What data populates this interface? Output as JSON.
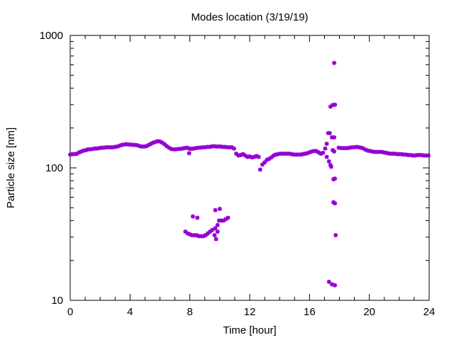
{
  "chart_data": {
    "type": "scatter",
    "title": "Modes location (3/19/19)",
    "xlabel": "Time [hour]",
    "ylabel": "Particle size [nm]",
    "xlim": [
      0,
      24
    ],
    "ylim": [
      10,
      1000
    ],
    "yscale": "log",
    "grid": false,
    "legend": "none",
    "xticks": [
      0,
      4,
      8,
      12,
      16,
      20,
      24
    ],
    "xtick_labels": [
      "0",
      "4",
      "8",
      "12",
      "16",
      "20",
      "24"
    ],
    "yticks": [
      10,
      100,
      1000
    ],
    "ytick_labels": [
      "10",
      "100",
      "1000"
    ],
    "marker_color": "#9400d3",
    "marker": "star",
    "series": [
      {
        "points": [
          [
            0.0,
            126
          ],
          [
            0.15,
            127
          ],
          [
            0.3,
            127
          ],
          [
            0.45,
            128
          ],
          [
            0.6,
            131
          ],
          [
            0.75,
            133
          ],
          [
            0.9,
            135
          ],
          [
            1.05,
            136
          ],
          [
            1.2,
            138
          ],
          [
            1.35,
            138
          ],
          [
            1.5,
            139
          ],
          [
            1.65,
            140
          ],
          [
            1.8,
            140
          ],
          [
            1.95,
            141
          ],
          [
            2.1,
            142
          ],
          [
            2.25,
            142
          ],
          [
            2.4,
            143
          ],
          [
            2.55,
            143
          ],
          [
            2.7,
            143
          ],
          [
            2.85,
            143
          ],
          [
            3.0,
            144
          ],
          [
            3.15,
            145
          ],
          [
            3.3,
            147
          ],
          [
            3.45,
            149
          ],
          [
            3.6,
            150
          ],
          [
            3.75,
            151
          ],
          [
            3.9,
            150
          ],
          [
            4.05,
            150
          ],
          [
            4.2,
            149
          ],
          [
            4.35,
            149
          ],
          [
            4.5,
            148
          ],
          [
            4.65,
            146
          ],
          [
            4.8,
            145
          ],
          [
            4.95,
            145
          ],
          [
            5.1,
            146
          ],
          [
            5.25,
            149
          ],
          [
            5.4,
            152
          ],
          [
            5.55,
            155
          ],
          [
            5.7,
            157
          ],
          [
            5.85,
            159
          ],
          [
            6.0,
            158
          ],
          [
            6.15,
            155
          ],
          [
            6.3,
            151
          ],
          [
            6.45,
            146
          ],
          [
            6.6,
            142
          ],
          [
            6.75,
            139
          ],
          [
            6.9,
            138
          ],
          [
            7.05,
            138
          ],
          [
            7.2,
            139
          ],
          [
            7.35,
            139
          ],
          [
            7.5,
            140
          ],
          [
            7.65,
            141
          ],
          [
            7.8,
            142
          ],
          [
            7.95,
            140
          ],
          [
            8.1,
            139
          ],
          [
            8.25,
            140
          ],
          [
            8.4,
            141
          ],
          [
            8.55,
            142
          ],
          [
            8.7,
            142
          ],
          [
            8.85,
            143
          ],
          [
            9.0,
            143
          ],
          [
            9.15,
            144
          ],
          [
            9.3,
            144
          ],
          [
            9.45,
            145
          ],
          [
            9.6,
            146
          ],
          [
            9.75,
            145
          ],
          [
            9.9,
            145
          ],
          [
            10.05,
            145
          ],
          [
            10.2,
            144
          ],
          [
            10.35,
            144
          ],
          [
            10.5,
            143
          ],
          [
            10.65,
            143
          ],
          [
            10.8,
            143
          ],
          [
            10.95,
            140
          ],
          [
            11.1,
            128
          ],
          [
            11.25,
            124
          ],
          [
            11.4,
            125
          ],
          [
            11.55,
            127
          ],
          [
            11.7,
            124
          ],
          [
            11.85,
            121
          ],
          [
            12.0,
            122
          ],
          [
            12.15,
            120
          ],
          [
            12.3,
            121
          ],
          [
            12.45,
            123
          ],
          [
            12.6,
            121
          ],
          [
            12.7,
            97
          ],
          [
            12.85,
            106
          ],
          [
            13.0,
            110
          ],
          [
            13.15,
            115
          ],
          [
            13.3,
            117
          ],
          [
            13.45,
            120
          ],
          [
            13.6,
            124
          ],
          [
            13.75,
            126
          ],
          [
            13.9,
            127
          ],
          [
            14.05,
            128
          ],
          [
            14.2,
            128
          ],
          [
            14.35,
            128
          ],
          [
            14.5,
            128
          ],
          [
            14.65,
            128
          ],
          [
            14.8,
            127
          ],
          [
            14.95,
            126
          ],
          [
            15.1,
            126
          ],
          [
            15.25,
            126
          ],
          [
            15.4,
            126
          ],
          [
            15.55,
            127
          ],
          [
            15.7,
            128
          ],
          [
            15.85,
            129
          ],
          [
            16.0,
            131
          ],
          [
            16.15,
            133
          ],
          [
            16.3,
            134
          ],
          [
            16.45,
            134
          ],
          [
            16.6,
            131
          ],
          [
            16.75,
            128
          ],
          [
            16.9,
            130
          ],
          [
            17.05,
            140
          ],
          [
            17.15,
            152
          ],
          [
            17.25,
            183
          ],
          [
            17.35,
            183
          ],
          [
            17.5,
            170
          ],
          [
            17.65,
            170
          ],
          [
            17.3,
            112
          ],
          [
            17.4,
            105
          ],
          [
            17.45,
            102
          ],
          [
            17.15,
            121
          ],
          [
            17.55,
            136
          ],
          [
            17.65,
            133
          ],
          [
            17.4,
            290
          ],
          [
            17.55,
            298
          ],
          [
            17.7,
            300
          ],
          [
            17.6,
            82
          ],
          [
            17.7,
            83
          ],
          [
            17.6,
            55
          ],
          [
            17.7,
            54
          ],
          [
            17.75,
            31
          ],
          [
            17.65,
            620
          ],
          [
            17.3,
            13.8
          ],
          [
            17.5,
            13.2
          ],
          [
            17.7,
            13.0
          ],
          [
            17.95,
            142
          ],
          [
            18.1,
            141
          ],
          [
            18.25,
            141
          ],
          [
            18.4,
            141
          ],
          [
            18.55,
            141
          ],
          [
            18.7,
            142
          ],
          [
            18.85,
            143
          ],
          [
            19.0,
            143
          ],
          [
            19.15,
            144
          ],
          [
            19.3,
            143
          ],
          [
            19.45,
            142
          ],
          [
            19.6,
            140
          ],
          [
            19.75,
            137
          ],
          [
            19.9,
            135
          ],
          [
            20.05,
            134
          ],
          [
            20.2,
            133
          ],
          [
            20.35,
            132
          ],
          [
            20.5,
            132
          ],
          [
            20.65,
            132
          ],
          [
            20.8,
            132
          ],
          [
            20.95,
            131
          ],
          [
            21.1,
            130
          ],
          [
            21.25,
            129
          ],
          [
            21.4,
            128
          ],
          [
            21.55,
            128
          ],
          [
            21.7,
            128
          ],
          [
            21.85,
            127
          ],
          [
            22.0,
            127
          ],
          [
            22.15,
            127
          ],
          [
            22.3,
            126
          ],
          [
            22.45,
            126
          ],
          [
            22.6,
            125
          ],
          [
            22.75,
            125
          ],
          [
            22.9,
            124
          ],
          [
            23.05,
            124
          ],
          [
            23.2,
            125
          ],
          [
            23.35,
            125
          ],
          [
            23.5,
            125
          ],
          [
            23.65,
            124
          ],
          [
            23.8,
            124
          ],
          [
            23.95,
            124
          ],
          [
            7.7,
            33
          ],
          [
            7.85,
            32
          ],
          [
            8.0,
            31.5
          ],
          [
            8.15,
            31
          ],
          [
            8.3,
            31
          ],
          [
            8.45,
            31
          ],
          [
            8.6,
            30.5
          ],
          [
            8.75,
            30.5
          ],
          [
            8.9,
            30.5
          ],
          [
            9.05,
            31
          ],
          [
            9.2,
            32
          ],
          [
            9.35,
            33
          ],
          [
            9.5,
            34
          ],
          [
            9.65,
            31
          ],
          [
            9.75,
            29
          ],
          [
            9.85,
            37
          ],
          [
            9.95,
            40
          ],
          [
            10.1,
            40
          ],
          [
            10.25,
            40
          ],
          [
            10.4,
            41
          ],
          [
            10.55,
            42
          ],
          [
            8.2,
            43
          ],
          [
            8.5,
            42
          ],
          [
            9.7,
            48
          ],
          [
            10.0,
            49
          ],
          [
            9.7,
            35
          ],
          [
            9.85,
            33
          ],
          [
            7.95,
            129
          ]
        ]
      }
    ]
  }
}
